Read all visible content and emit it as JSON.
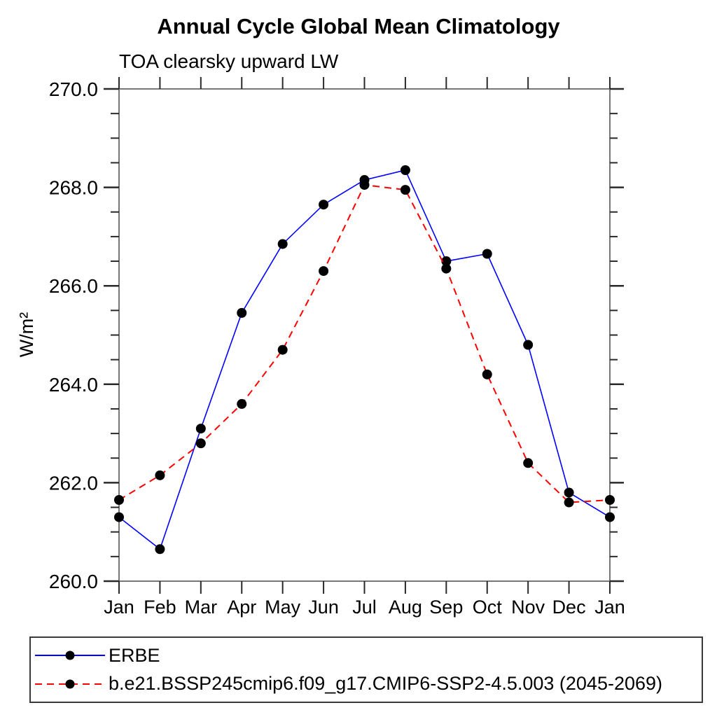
{
  "chart_data": {
    "type": "line",
    "title": "Annual Cycle Global Mean Climatology",
    "subtitle": "TOA clearsky upward LW",
    "ylabel": "W/m²",
    "xlabel": "",
    "categories": [
      "Jan",
      "Feb",
      "Mar",
      "Apr",
      "May",
      "Jun",
      "Jul",
      "Aug",
      "Sep",
      "Oct",
      "Nov",
      "Dec",
      "Jan"
    ],
    "ylim": [
      260.0,
      270.0
    ],
    "y_major_step": 2.0,
    "y_minor_step": 0.5,
    "y_tick_labels": [
      "260.0",
      "262.0",
      "264.0",
      "266.0",
      "268.0",
      "270.0"
    ],
    "grid": false,
    "legend_position": "bottom-left-boxed",
    "axis_box_color": "#777777",
    "tick_color": "#2a2a2a",
    "series": [
      {
        "name": "ERBE",
        "color": "#0000ff",
        "line_style": "solid",
        "marker": "filled-circle",
        "marker_color": "#000000",
        "values": [
          261.3,
          260.65,
          263.1,
          265.45,
          266.85,
          267.65,
          268.15,
          268.35,
          266.5,
          266.65,
          264.8,
          261.8,
          261.3
        ]
      },
      {
        "name": "b.e21.BSSP245cmip6.f09_g17.CMIP6-SSP2-4.5.003 (2045-2069)",
        "color": "#ff0000",
        "line_style": "dashed",
        "marker": "filled-circle",
        "marker_color": "#000000",
        "values": [
          261.65,
          262.15,
          262.8,
          263.6,
          264.7,
          266.3,
          268.05,
          267.95,
          266.35,
          264.2,
          262.4,
          261.6,
          261.65
        ]
      }
    ]
  }
}
